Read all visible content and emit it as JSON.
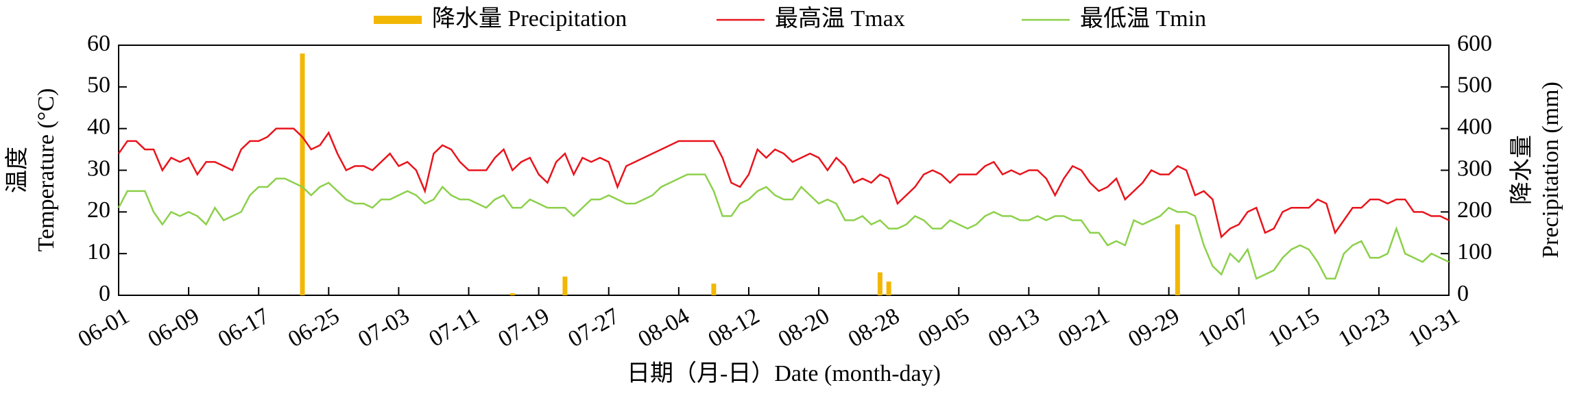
{
  "chart_data": {
    "type": "line",
    "x_label": "日期（月-日）Date (month-day)",
    "y_label": [
      "温度",
      "Temperature (°C)"
    ],
    "y2_label": [
      "降水量",
      "Precipitation (mm)"
    ],
    "categories": [
      "06-01",
      null,
      null,
      null,
      null,
      null,
      null,
      null,
      "06-09",
      null,
      null,
      null,
      null,
      null,
      null,
      null,
      "06-17",
      null,
      null,
      null,
      null,
      null,
      null,
      null,
      "06-25",
      null,
      null,
      null,
      null,
      null,
      null,
      null,
      "07-03",
      null,
      null,
      null,
      null,
      null,
      null,
      null,
      "07-11",
      null,
      null,
      null,
      null,
      null,
      null,
      null,
      "07-19",
      null,
      null,
      null,
      null,
      null,
      null,
      null,
      "07-27",
      null,
      null,
      null,
      null,
      null,
      null,
      null,
      "08-04",
      null,
      null,
      null,
      null,
      null,
      null,
      null,
      "08-12",
      null,
      null,
      null,
      null,
      null,
      null,
      null,
      "08-20",
      null,
      null,
      null,
      null,
      null,
      null,
      null,
      "08-28",
      null,
      null,
      null,
      null,
      null,
      null,
      null,
      "09-05",
      null,
      null,
      null,
      null,
      null,
      null,
      null,
      "09-13",
      null,
      null,
      null,
      null,
      null,
      null,
      null,
      "09-21",
      null,
      null,
      null,
      null,
      null,
      null,
      null,
      "09-29",
      null,
      null,
      null,
      null,
      null,
      null,
      null,
      "10-07",
      null,
      null,
      null,
      null,
      null,
      null,
      null,
      "10-15",
      null,
      null,
      null,
      null,
      null,
      null,
      null,
      "10-23",
      null,
      null,
      null,
      null,
      null,
      null,
      null,
      "10-31"
    ],
    "series": [
      {
        "name": "降水量 Precipitation",
        "type": "bar",
        "axis": "y2",
        "color": "#f2b705",
        "values": [
          0,
          0,
          0,
          0,
          0,
          0,
          0,
          0,
          0,
          0,
          0,
          0,
          0,
          0,
          0,
          0,
          0,
          0,
          0,
          0,
          0,
          580,
          0,
          0,
          0,
          0,
          0,
          0,
          0,
          0,
          0,
          0,
          0,
          0,
          0,
          0,
          0,
          0,
          0,
          0,
          0,
          0,
          0,
          0,
          0,
          5,
          0,
          0,
          0,
          0,
          0,
          45,
          0,
          0,
          0,
          0,
          0,
          0,
          0,
          0,
          0,
          0,
          0,
          0,
          0,
          0,
          0,
          0,
          28,
          0,
          0,
          0,
          0,
          0,
          0,
          0,
          0,
          0,
          0,
          0,
          0,
          0,
          0,
          0,
          0,
          0,
          0,
          55,
          33,
          0,
          0,
          0,
          0,
          0,
          0,
          0,
          0,
          0,
          0,
          0,
          0,
          0,
          0,
          0,
          0,
          0,
          0,
          0,
          0,
          0,
          0,
          0,
          0,
          0,
          0,
          0,
          0,
          0,
          0,
          0,
          0,
          170,
          0,
          0,
          0,
          0,
          0,
          0,
          0,
          0,
          0,
          0,
          0,
          0,
          0,
          0,
          0,
          0,
          0,
          0,
          0,
          0,
          0,
          0,
          0,
          0,
          0,
          0,
          0,
          0,
          0,
          0,
          0
        ]
      },
      {
        "name": "最高温 Tmax",
        "type": "line",
        "color": "#e8141c",
        "values": [
          34,
          37,
          37,
          35,
          35,
          30,
          33,
          32,
          33,
          29,
          32,
          32,
          31,
          30,
          35,
          37,
          37,
          38,
          40,
          40,
          40,
          38,
          35,
          36,
          39,
          34,
          30,
          31,
          31,
          30,
          32,
          34,
          31,
          32,
          30,
          25,
          34,
          36,
          35,
          32,
          30,
          30,
          30,
          33,
          35,
          30,
          32,
          33,
          29,
          27,
          32,
          34,
          29,
          33,
          32,
          33,
          32,
          26,
          31,
          32,
          33,
          34,
          35,
          36,
          37,
          37,
          37,
          37,
          37,
          33,
          27,
          26,
          29,
          35,
          33,
          35,
          34,
          32,
          33,
          34,
          33,
          30,
          33,
          31,
          27,
          28,
          27,
          29,
          28,
          22,
          24,
          26,
          29,
          30,
          29,
          27,
          29,
          29,
          29,
          31,
          32,
          29,
          30,
          29,
          30,
          30,
          28,
          24,
          28,
          31,
          30,
          27,
          25,
          26,
          28,
          23,
          25,
          27,
          30,
          29,
          29,
          31,
          30,
          24,
          25,
          23,
          14,
          16,
          17,
          20,
          21,
          15,
          16,
          20,
          21,
          21,
          21,
          23,
          22,
          15,
          18,
          21,
          21,
          23,
          23,
          22,
          23,
          23,
          20,
          20,
          19,
          19,
          18
        ]
      },
      {
        "name": "最低温 Tmin",
        "type": "line",
        "color": "#8cd04a",
        "values": [
          21,
          25,
          25,
          25,
          20,
          17,
          20,
          19,
          20,
          19,
          17,
          21,
          18,
          19,
          20,
          24,
          26,
          26,
          28,
          28,
          27,
          26,
          24,
          26,
          27,
          25,
          23,
          22,
          22,
          21,
          23,
          23,
          24,
          25,
          24,
          22,
          23,
          26,
          24,
          23,
          23,
          22,
          21,
          23,
          24,
          21,
          21,
          23,
          22,
          21,
          21,
          21,
          19,
          21,
          23,
          23,
          24,
          23,
          22,
          22,
          23,
          24,
          26,
          27,
          28,
          29,
          29,
          29,
          25,
          19,
          19,
          22,
          23,
          25,
          26,
          24,
          23,
          23,
          26,
          24,
          22,
          23,
          22,
          18,
          18,
          19,
          17,
          18,
          16,
          16,
          17,
          19,
          18,
          16,
          16,
          18,
          17,
          16,
          17,
          19,
          20,
          19,
          19,
          18,
          18,
          19,
          18,
          19,
          19,
          18,
          18,
          15,
          15,
          12,
          13,
          12,
          18,
          17,
          18,
          19,
          21,
          20,
          20,
          19,
          12,
          7,
          5,
          10,
          8,
          11,
          4,
          5,
          6,
          9,
          11,
          12,
          11,
          8,
          4,
          4,
          10,
          12,
          13,
          9,
          9,
          10,
          16,
          10,
          9,
          8,
          10,
          9,
          8
        ]
      }
    ],
    "ylim": [
      0,
      60
    ],
    "yticks": [
      0,
      10,
      20,
      30,
      40,
      50,
      60
    ],
    "y2lim": [
      0,
      600
    ],
    "y2ticks": [
      0,
      100,
      200,
      300,
      400,
      500,
      600
    ],
    "legend": "top",
    "grid": false
  }
}
